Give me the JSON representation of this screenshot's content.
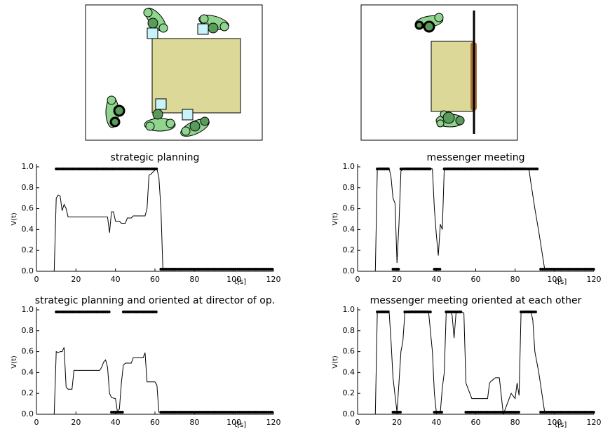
{
  "chart_data": [
    {
      "type": "line",
      "title": "strategic planning",
      "xlabel": "t[s]",
      "ylabel": "V(t)",
      "color": "#000000",
      "x": [
        0,
        9,
        10,
        11,
        12,
        13,
        14,
        15,
        16,
        36,
        37,
        38,
        39,
        40,
        42,
        43,
        45,
        46,
        48,
        49,
        55,
        56,
        57,
        58,
        60,
        61,
        62,
        63,
        64,
        120
      ],
      "values": [
        0,
        0,
        0.7,
        0.73,
        0.72,
        0.58,
        0.64,
        0.6,
        0.52,
        0.52,
        0.37,
        0.57,
        0.57,
        0.48,
        0.48,
        0.46,
        0.46,
        0.51,
        0.51,
        0.53,
        0.53,
        0.6,
        0.92,
        0.93,
        0.97,
        0.98,
        0.9,
        0.6,
        0.02,
        0.02
      ],
      "intervals": [
        {
          "start": 10,
          "end": 61,
          "level": 0.98
        },
        {
          "start": 63,
          "end": 120,
          "level": 0.02
        }
      ],
      "xlim": [
        0,
        120
      ],
      "xticks": [
        0,
        20,
        40,
        60,
        80,
        100,
        120
      ],
      "ylim": [
        0,
        1
      ],
      "yticks": [
        {
          "value": 0,
          "label": "0.0"
        },
        0.2,
        0.4,
        0.6,
        0.8,
        {
          "value": 1,
          "label": "1.0"
        }
      ]
    },
    {
      "type": "line",
      "title": "messenger meeting",
      "xlabel": "t[s]",
      "ylabel": "V(t)",
      "color": "#000000",
      "x": [
        0,
        9,
        10,
        11,
        16,
        17,
        18,
        19,
        20,
        21,
        22,
        24,
        36,
        38,
        39,
        40,
        41,
        42,
        43,
        44,
        45,
        85,
        87,
        88,
        90,
        92,
        95,
        120
      ],
      "values": [
        0,
        0,
        0.97,
        0.99,
        0.99,
        0.9,
        0.7,
        0.65,
        0.08,
        0.45,
        0.96,
        0.99,
        0.99,
        0.98,
        0.6,
        0.35,
        0.15,
        0.45,
        0.4,
        0.98,
        0.99,
        0.99,
        0.98,
        0.85,
        0.6,
        0.38,
        0.02,
        0.02
      ],
      "intervals": [
        {
          "start": 10,
          "end": 16,
          "level": 0.98
        },
        {
          "start": 22,
          "end": 37,
          "level": 0.98
        },
        {
          "start": 44,
          "end": 92,
          "level": 0.98
        },
        {
          "start": 18,
          "end": 21,
          "level": 0.02
        },
        {
          "start": 39,
          "end": 42,
          "level": 0.02
        },
        {
          "start": 93,
          "end": 120,
          "level": 0.02
        }
      ],
      "xlim": [
        0,
        120
      ],
      "xticks": [
        0,
        20,
        40,
        60,
        80,
        100,
        120
      ],
      "ylim": [
        0,
        1
      ],
      "yticks": [
        {
          "value": 0,
          "label": "0.0"
        },
        0.2,
        0.4,
        0.6,
        0.8,
        {
          "value": 1,
          "label": "1.0"
        }
      ]
    },
    {
      "type": "line",
      "title": "strategic planning and oriented at director of op.",
      "xlabel": "t[s]",
      "ylabel": "V(t)",
      "color": "#000000",
      "x": [
        0,
        9,
        10,
        11,
        12,
        13,
        14,
        15,
        16,
        18,
        19,
        32,
        33,
        34,
        35,
        36,
        37,
        38,
        40,
        41,
        42,
        43,
        44,
        45,
        48,
        49,
        54,
        55,
        56,
        60,
        61,
        62,
        120
      ],
      "values": [
        0,
        0,
        0.6,
        0.59,
        0.6,
        0.6,
        0.64,
        0.26,
        0.24,
        0.24,
        0.42,
        0.42,
        0.45,
        0.5,
        0.52,
        0.45,
        0.2,
        0.16,
        0.15,
        0.02,
        0.05,
        0.3,
        0.47,
        0.49,
        0.49,
        0.54,
        0.54,
        0.59,
        0.31,
        0.31,
        0.28,
        0.02,
        0.02
      ],
      "intervals": [
        {
          "start": 10,
          "end": 37,
          "level": 0.98
        },
        {
          "start": 44,
          "end": 61,
          "level": 0.98
        },
        {
          "start": 38,
          "end": 44,
          "level": 0.02
        },
        {
          "start": 63,
          "end": 120,
          "level": 0.02
        }
      ],
      "xlim": [
        0,
        120
      ],
      "xticks": [
        0,
        20,
        40,
        60,
        80,
        100,
        120
      ],
      "ylim": [
        0,
        1
      ],
      "yticks": [
        {
          "value": 0,
          "label": "0.0"
        },
        0.2,
        0.4,
        0.6,
        0.8,
        {
          "value": 1,
          "label": "1.0"
        }
      ]
    },
    {
      "type": "line",
      "title": "messenger meeting oriented at each other",
      "xlabel": "t[s]",
      "ylabel": "V(t)",
      "color": "#000000",
      "x": [
        0,
        9,
        10,
        11,
        16,
        17,
        18,
        20,
        21,
        22,
        23,
        24,
        26,
        36,
        38,
        39,
        40,
        42,
        43,
        44,
        45,
        47,
        48,
        49,
        50,
        52,
        54,
        55,
        56,
        57,
        58,
        66,
        67,
        68,
        70,
        72,
        74,
        76,
        78,
        80,
        81,
        82,
        83,
        85,
        88,
        89,
        90,
        92,
        95,
        120
      ],
      "values": [
        0,
        0,
        0.97,
        0.99,
        0.99,
        0.7,
        0.35,
        0.02,
        0.3,
        0.6,
        0.7,
        0.97,
        0.99,
        0.99,
        0.6,
        0.2,
        0.02,
        0.02,
        0.25,
        0.4,
        0.98,
        0.99,
        0.95,
        0.73,
        0.97,
        0.99,
        0.97,
        0.3,
        0.25,
        0.2,
        0.15,
        0.15,
        0.3,
        0.32,
        0.35,
        0.35,
        0,
        0.1,
        0.2,
        0.15,
        0.3,
        0.18,
        0.97,
        0.99,
        0.99,
        0.9,
        0.6,
        0.4,
        0.02,
        0.02
      ],
      "intervals": [
        {
          "start": 10,
          "end": 16,
          "level": 0.98
        },
        {
          "start": 24,
          "end": 37,
          "level": 0.98
        },
        {
          "start": 45,
          "end": 53,
          "level": 0.98
        },
        {
          "start": 83,
          "end": 91,
          "level": 0.98
        },
        {
          "start": 18,
          "end": 22,
          "level": 0.02
        },
        {
          "start": 39,
          "end": 43,
          "level": 0.02
        },
        {
          "start": 55,
          "end": 82,
          "level": 0.02
        },
        {
          "start": 93,
          "end": 120,
          "level": 0.02
        }
      ],
      "xlim": [
        0,
        120
      ],
      "xticks": [
        0,
        20,
        40,
        60,
        80,
        100,
        120
      ],
      "ylim": [
        0,
        1
      ],
      "yticks": [
        {
          "value": 0,
          "label": "0.0"
        },
        0.2,
        0.4,
        0.6,
        0.8,
        {
          "value": 1,
          "label": "1.0"
        }
      ]
    }
  ]
}
